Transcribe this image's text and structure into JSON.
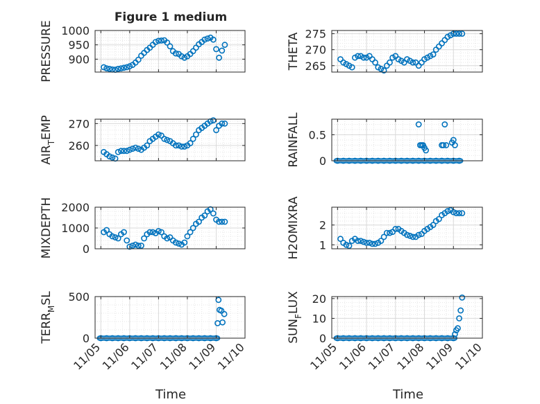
{
  "figure": {
    "title": "Figure 1 medium",
    "xlabel": "Time",
    "xticks": [
      "11/05",
      "11/06",
      "11/07",
      "11/08",
      "11/09",
      "11/10"
    ]
  },
  "style": {
    "marker_color": "#0072bd",
    "axis_color": "#262626",
    "grid_color": "#d9d9d9",
    "background": "#ffffff"
  },
  "chart_data": [
    {
      "type": "scatter",
      "ylabel": "PRESSURE",
      "ylim": [
        855,
        1000
      ],
      "yticks": [
        900,
        950,
        1000
      ],
      "x": [
        5.1,
        5.2,
        5.3,
        5.4,
        5.5,
        5.6,
        5.7,
        5.8,
        5.9,
        6.0,
        6.1,
        6.2,
        6.3,
        6.4,
        6.5,
        6.6,
        6.7,
        6.8,
        6.9,
        7.0,
        7.1,
        7.2,
        7.3,
        7.4,
        7.5,
        7.6,
        7.7,
        7.8,
        7.9,
        8.0,
        8.1,
        8.2,
        8.3,
        8.4,
        8.5,
        8.6,
        8.7,
        8.8,
        8.9,
        9.0,
        9.1,
        9.2,
        9.3
      ],
      "y": [
        872,
        868,
        866,
        864,
        863,
        866,
        868,
        870,
        872,
        875,
        880,
        888,
        898,
        912,
        922,
        932,
        940,
        950,
        960,
        964,
        965,
        966,
        958,
        945,
        928,
        920,
        918,
        910,
        905,
        910,
        918,
        928,
        940,
        952,
        960,
        968,
        972,
        975,
        968,
        935,
        905,
        930,
        950
      ]
    },
    {
      "type": "scatter",
      "ylabel": "THETA",
      "ylim": [
        263,
        276
      ],
      "yticks": [
        265,
        270,
        275
      ],
      "x": [
        5.1,
        5.2,
        5.3,
        5.4,
        5.5,
        5.6,
        5.7,
        5.8,
        5.9,
        6.0,
        6.1,
        6.2,
        6.3,
        6.4,
        6.5,
        6.6,
        6.7,
        6.8,
        6.9,
        7.0,
        7.1,
        7.2,
        7.3,
        7.4,
        7.5,
        7.6,
        7.7,
        7.8,
        7.9,
        8.0,
        8.1,
        8.2,
        8.3,
        8.4,
        8.5,
        8.6,
        8.7,
        8.8,
        8.9,
        9.0,
        9.1,
        9.2,
        9.3
      ],
      "y": [
        267,
        266,
        265.5,
        265,
        264.5,
        267.5,
        268,
        268,
        267.5,
        267.5,
        268,
        267,
        266,
        264.5,
        264,
        263.5,
        265,
        266,
        267.5,
        268,
        267,
        266.5,
        266,
        267,
        266.5,
        266,
        266,
        265,
        266,
        267,
        267.5,
        268,
        268.5,
        270,
        271,
        272,
        273,
        274,
        274.5,
        275,
        275,
        275,
        275
      ]
    },
    {
      "type": "scatter",
      "ylabel": "AIR_TEMP",
      "ylim": [
        253,
        272
      ],
      "yticks": [
        260,
        270
      ],
      "x": [
        5.1,
        5.2,
        5.3,
        5.4,
        5.5,
        5.6,
        5.7,
        5.8,
        5.9,
        6.0,
        6.1,
        6.2,
        6.3,
        6.4,
        6.5,
        6.6,
        6.7,
        6.8,
        6.9,
        7.0,
        7.1,
        7.2,
        7.3,
        7.4,
        7.5,
        7.6,
        7.7,
        7.8,
        7.9,
        8.0,
        8.1,
        8.2,
        8.3,
        8.4,
        8.5,
        8.6,
        8.7,
        8.8,
        8.9,
        9.0,
        9.1,
        9.2,
        9.3
      ],
      "y": [
        257,
        256,
        255,
        254.5,
        254,
        257,
        257.5,
        257.5,
        257.5,
        258,
        258.5,
        259,
        258.5,
        258,
        259,
        260,
        262,
        263,
        264,
        265,
        264.5,
        263,
        262.5,
        262,
        261,
        260,
        260,
        259.5,
        259.5,
        260,
        261,
        263,
        265,
        267,
        268,
        269,
        270,
        271,
        271.5,
        267,
        269,
        270,
        270
      ]
    },
    {
      "type": "scatter",
      "ylabel": "RAINFALL",
      "ylim": [
        0,
        0.8
      ],
      "yticks": [
        0,
        0.5
      ],
      "ytick_labels": [
        "0",
        "0.5"
      ],
      "x": [
        5.0,
        5.2,
        5.4,
        5.6,
        5.8,
        6.0,
        6.2,
        6.4,
        6.6,
        6.8,
        7.0,
        7.2,
        7.4,
        7.6,
        7.8,
        8.0,
        8.2,
        8.4,
        8.6,
        8.8,
        9.0,
        9.2,
        7.8,
        7.85,
        7.9,
        7.95,
        8.0,
        8.05,
        8.6,
        8.65,
        8.7,
        8.75,
        8.95,
        9.0,
        9.05
      ],
      "y": [
        0,
        0,
        0,
        0,
        0,
        0,
        0,
        0,
        0,
        0,
        0,
        0,
        0,
        0,
        0,
        0,
        0,
        0,
        0,
        0,
        0,
        0,
        0.7,
        0.3,
        0.3,
        0.3,
        0.25,
        0.2,
        0.3,
        0.3,
        0.7,
        0.3,
        0.35,
        0.4,
        0.3
      ]
    },
    {
      "type": "scatter",
      "ylabel": "MIXDEPTH",
      "ylim": [
        0,
        2000
      ],
      "yticks": [
        0,
        1000,
        2000
      ],
      "x": [
        5.1,
        5.2,
        5.3,
        5.4,
        5.5,
        5.6,
        5.7,
        5.8,
        5.9,
        6.0,
        6.1,
        6.2,
        6.3,
        6.4,
        6.5,
        6.6,
        6.7,
        6.8,
        6.9,
        7.0,
        7.1,
        7.2,
        7.3,
        7.4,
        7.5,
        7.6,
        7.7,
        7.8,
        7.9,
        8.0,
        8.1,
        8.2,
        8.3,
        8.4,
        8.5,
        8.6,
        8.7,
        8.8,
        8.9,
        9.0,
        9.1,
        9.2,
        9.3
      ],
      "y": [
        800,
        900,
        700,
        600,
        550,
        500,
        700,
        800,
        400,
        100,
        150,
        200,
        150,
        150,
        500,
        700,
        800,
        800,
        750,
        850,
        800,
        600,
        500,
        550,
        400,
        300,
        250,
        200,
        300,
        600,
        800,
        1000,
        1200,
        1300,
        1500,
        1600,
        1800,
        1900,
        1700,
        1400,
        1300,
        1300,
        1300
      ]
    },
    {
      "type": "scatter",
      "ylabel": "H2OMIXRA",
      "ylim": [
        0.8,
        2.9
      ],
      "yticks": [
        1,
        2
      ],
      "x": [
        5.1,
        5.2,
        5.3,
        5.4,
        5.5,
        5.6,
        5.7,
        5.8,
        5.9,
        6.0,
        6.1,
        6.2,
        6.3,
        6.4,
        6.5,
        6.6,
        6.7,
        6.8,
        6.9,
        7.0,
        7.1,
        7.2,
        7.3,
        7.4,
        7.5,
        7.6,
        7.7,
        7.8,
        7.9,
        8.0,
        8.1,
        8.2,
        8.3,
        8.4,
        8.5,
        8.6,
        8.7,
        8.8,
        8.9,
        9.0,
        9.1,
        9.2,
        9.3
      ],
      "y": [
        1.3,
        1.1,
        1.0,
        0.95,
        1.2,
        1.3,
        1.2,
        1.2,
        1.15,
        1.1,
        1.1,
        1.05,
        1.05,
        1.1,
        1.2,
        1.4,
        1.6,
        1.6,
        1.65,
        1.8,
        1.8,
        1.7,
        1.6,
        1.5,
        1.45,
        1.4,
        1.4,
        1.5,
        1.55,
        1.7,
        1.8,
        1.9,
        2.0,
        2.2,
        2.3,
        2.5,
        2.6,
        2.7,
        2.75,
        2.65,
        2.6,
        2.6,
        2.6
      ]
    },
    {
      "type": "scatter",
      "ylabel": "TERR_MSL",
      "ylim": [
        0,
        500
      ],
      "yticks": [
        0,
        500
      ],
      "x": [
        5.0,
        5.2,
        5.4,
        5.6,
        5.8,
        6.0,
        6.2,
        6.4,
        6.6,
        6.8,
        7.0,
        7.2,
        7.4,
        7.6,
        7.8,
        8.0,
        8.2,
        8.4,
        8.6,
        8.8,
        9.0,
        9.05,
        9.08,
        9.12,
        9.18,
        9.22,
        9.28
      ],
      "y": [
        0,
        0,
        0,
        0,
        0,
        0,
        0,
        0,
        0,
        0,
        0,
        0,
        0,
        0,
        0,
        0,
        0,
        0,
        0,
        0,
        0,
        180,
        460,
        340,
        330,
        190,
        290
      ]
    },
    {
      "type": "scatter",
      "ylabel": "SUN_FLUX",
      "ylim": [
        0,
        21
      ],
      "yticks": [
        0,
        10,
        20
      ],
      "x": [
        5.0,
        5.2,
        5.4,
        5.6,
        5.8,
        6.0,
        6.2,
        6.4,
        6.6,
        6.8,
        7.0,
        7.2,
        7.4,
        7.6,
        7.8,
        8.0,
        8.2,
        8.4,
        8.6,
        8.8,
        9.0,
        9.05,
        9.1,
        9.15,
        9.2,
        9.25,
        9.3
      ],
      "y": [
        0,
        0,
        0,
        0,
        0,
        0,
        0,
        0,
        0,
        0,
        0,
        0,
        0,
        0,
        0,
        0,
        0,
        0,
        0,
        0,
        0,
        2,
        4,
        5,
        10,
        14,
        20.5
      ]
    }
  ]
}
